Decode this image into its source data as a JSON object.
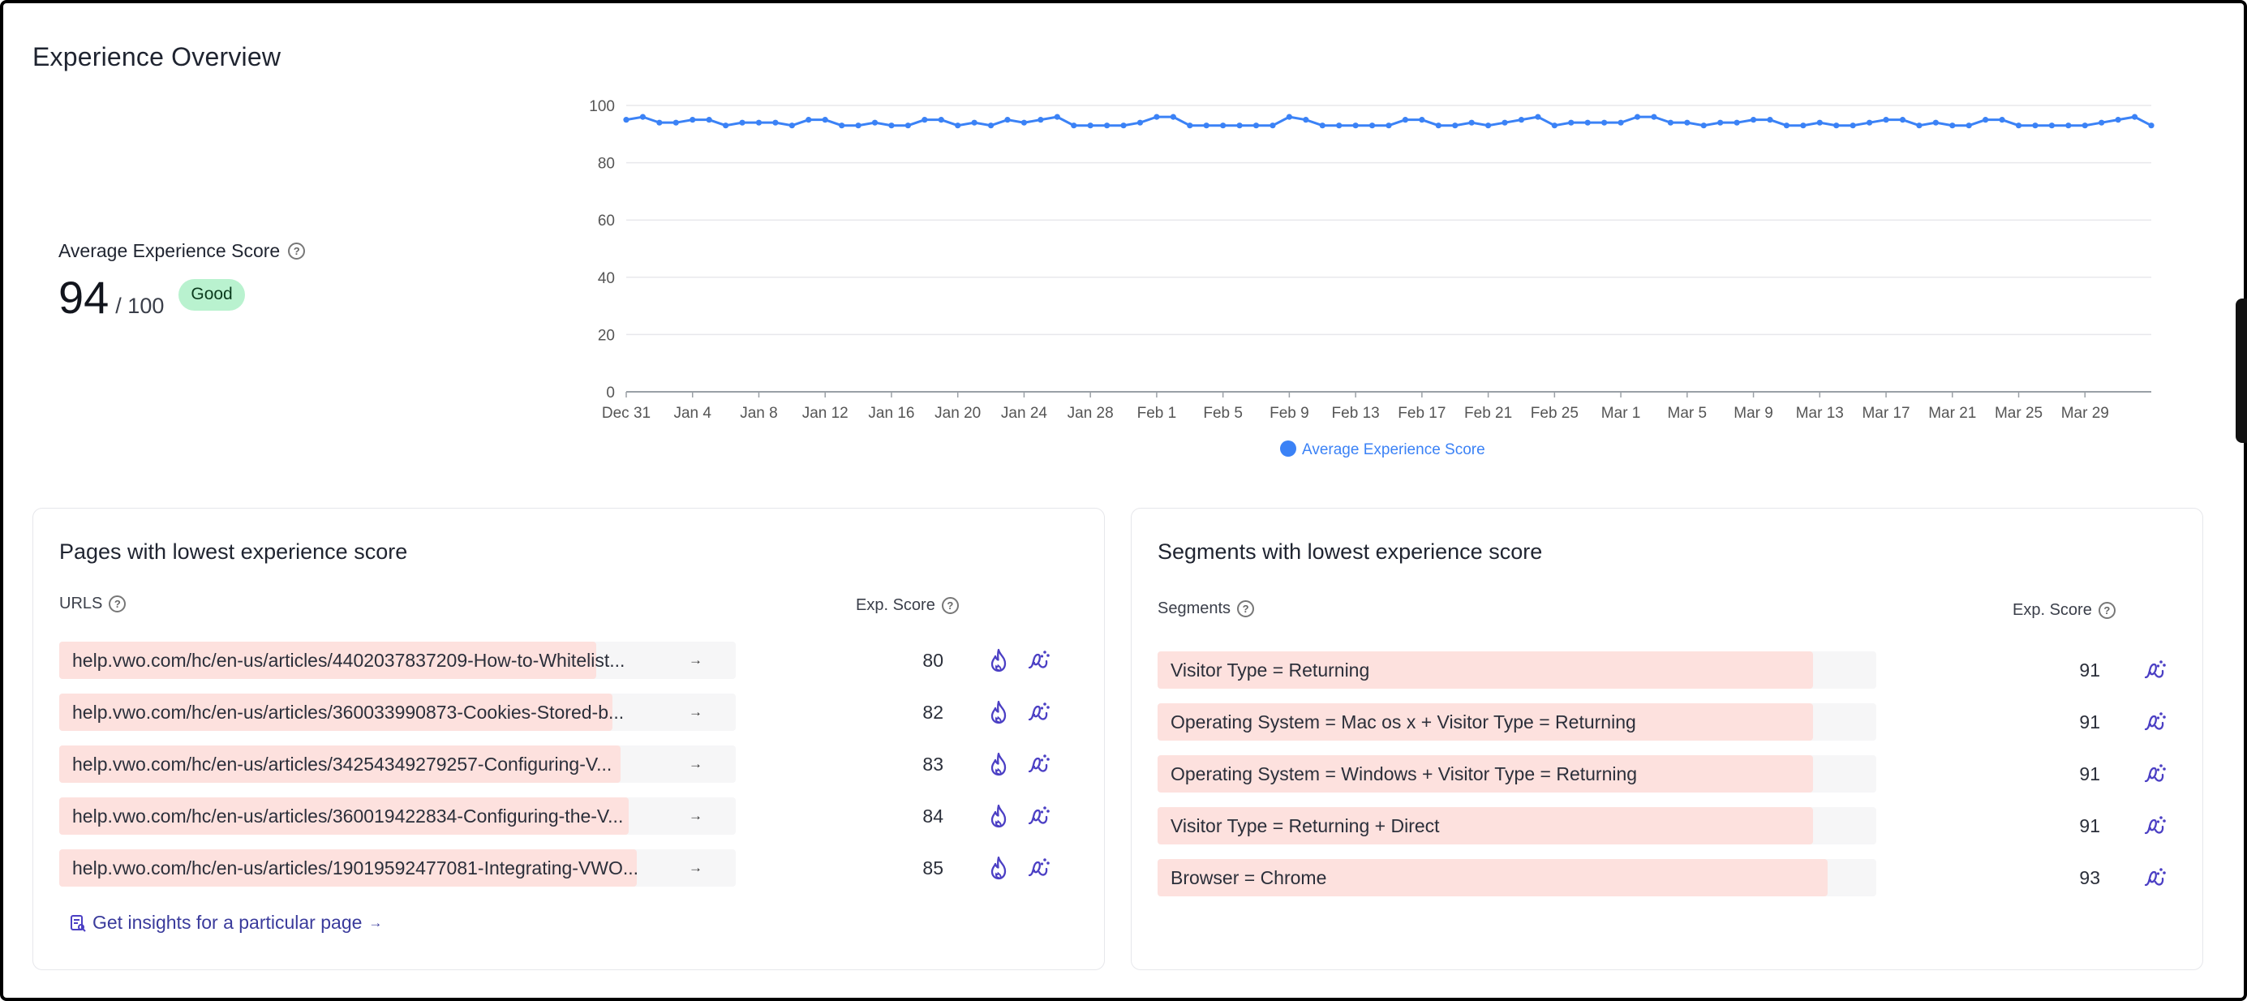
{
  "page": {
    "title": "Experience Overview"
  },
  "summary": {
    "label": "Average Experience Score",
    "score": "94",
    "out_of": "/ 100",
    "badge": "Good",
    "badge_color": "#b9f2cf"
  },
  "chart_data": {
    "type": "line",
    "title": "",
    "xlabel": "",
    "ylabel": "",
    "ylim": [
      0,
      100
    ],
    "yticks": [
      "0",
      "20",
      "40",
      "60",
      "80",
      "100"
    ],
    "xticks": [
      "Dec 31",
      "Jan 4",
      "Jan 8",
      "Jan 12",
      "Jan 16",
      "Jan 20",
      "Jan 24",
      "Jan 28",
      "Feb 1",
      "Feb 5",
      "Feb 9",
      "Feb 13",
      "Feb 17",
      "Feb 21",
      "Feb 25",
      "Mar 1",
      "Mar 5",
      "Mar 9",
      "Mar 13",
      "Mar 17",
      "Mar 21",
      "Mar 25",
      "Mar 29"
    ],
    "grid": true,
    "legend_position": "bottom-center",
    "series": [
      {
        "name": "Average Experience Score",
        "color": "#3b82f6",
        "values": [
          95,
          96,
          94,
          94,
          95,
          95,
          93,
          94,
          94,
          94,
          93,
          95,
          95,
          93,
          93,
          94,
          93,
          93,
          95,
          95,
          93,
          94,
          93,
          95,
          94,
          95,
          96,
          93,
          93,
          93,
          93,
          94,
          96,
          96,
          93,
          93,
          93,
          93,
          93,
          93,
          96,
          95,
          93,
          93,
          93,
          93,
          93,
          95,
          95,
          93,
          93,
          94,
          93,
          94,
          95,
          96,
          93,
          94,
          94,
          94,
          94,
          96,
          96,
          94,
          94,
          93,
          94,
          94,
          95,
          95,
          93,
          93,
          94,
          93,
          93,
          94,
          95,
          95,
          93,
          94,
          93,
          93,
          95,
          95,
          93,
          93,
          93,
          93,
          93,
          94,
          95,
          96,
          93
        ]
      }
    ]
  },
  "pages_card": {
    "title": "Pages with lowest experience score",
    "col_urls": "URLS",
    "col_score": "Exp. Score",
    "rows": [
      {
        "url": "help.vwo.com/hc/en-us/articles/4402037837209-How-to-Whitelist...",
        "score": "80",
        "bar": 0.8
      },
      {
        "url": "help.vwo.com/hc/en-us/articles/360033990873-Cookies-Stored-b...",
        "score": "82",
        "bar": 0.82
      },
      {
        "url": "help.vwo.com/hc/en-us/articles/34254349279257-Configuring-V...",
        "score": "83",
        "bar": 0.83
      },
      {
        "url": "help.vwo.com/hc/en-us/articles/360019422834-Configuring-the-V...",
        "score": "84",
        "bar": 0.84
      },
      {
        "url": "help.vwo.com/hc/en-us/articles/19019592477081-Integrating-VWO...",
        "score": "85",
        "bar": 0.85
      }
    ],
    "insights_link": "Get insights for a particular page",
    "icons": [
      "flame-icon",
      "session-recording-icon"
    ],
    "accent_color": "#4b3fc4"
  },
  "segments_card": {
    "title": "Segments with lowest experience score",
    "col_segments": "Segments",
    "col_score": "Exp. Score",
    "rows": [
      {
        "segment": "Visitor Type = Returning",
        "score": "91",
        "bar": 0.91
      },
      {
        "segment": "Operating System = Mac os x + Visitor Type = Returning",
        "score": "91",
        "bar": 0.91
      },
      {
        "segment": "Operating System = Windows + Visitor Type = Returning",
        "score": "91",
        "bar": 0.91
      },
      {
        "segment": "Visitor Type = Returning + Direct",
        "score": "91",
        "bar": 0.91
      },
      {
        "segment": "Browser = Chrome",
        "score": "93",
        "bar": 0.93
      }
    ]
  }
}
